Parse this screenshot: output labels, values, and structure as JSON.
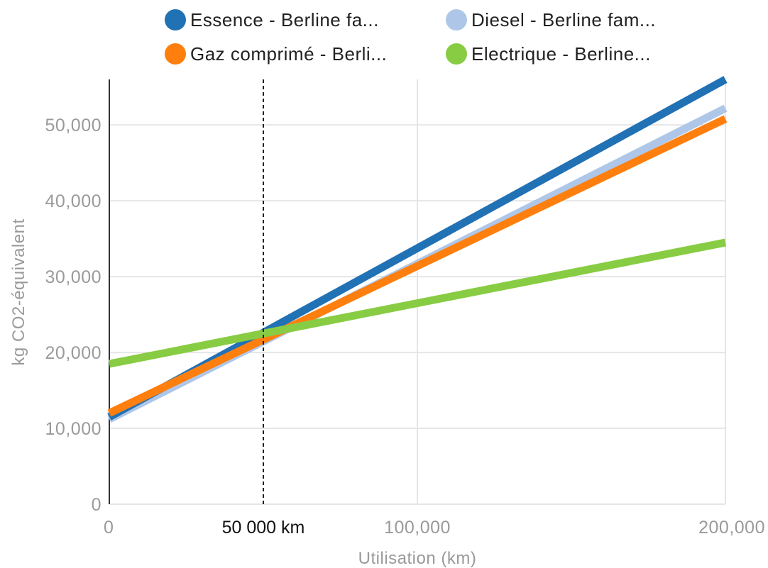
{
  "chart_data": {
    "type": "line",
    "xlabel": "Utilisation (km)",
    "ylabel": "kg CO2-équivalent",
    "xlim": [
      0,
      200000
    ],
    "ylim": [
      0,
      56000
    ],
    "x_ticks": [
      {
        "value": 0,
        "label": "0"
      },
      {
        "value": 100000,
        "label": "100,000"
      },
      {
        "value": 200000,
        "label": "200,000"
      }
    ],
    "y_ticks": [
      {
        "value": 0,
        "label": "0"
      },
      {
        "value": 10000,
        "label": "10,000"
      },
      {
        "value": 20000,
        "label": "20,000"
      },
      {
        "value": 30000,
        "label": "30,000"
      },
      {
        "value": 40000,
        "label": "40,000"
      },
      {
        "value": 50000,
        "label": "50,000"
      }
    ],
    "grid": true,
    "legend_position": "top",
    "series": [
      {
        "name": "Essence - Berline fa...",
        "color": "#2171b5",
        "x": [
          0,
          200000
        ],
        "y": [
          11500,
          56000
        ]
      },
      {
        "name": "Diesel - Berline fam...",
        "color": "#aec7e8",
        "x": [
          0,
          200000
        ],
        "y": [
          11200,
          52200
        ]
      },
      {
        "name": "Gaz comprimé - Berli...",
        "color": "#ff7f0e",
        "x": [
          0,
          200000
        ],
        "y": [
          12000,
          50800
        ]
      },
      {
        "name": "Electrique - Berline...",
        "color": "#88cc44",
        "x": [
          0,
          200000
        ],
        "y": [
          18500,
          34500
        ]
      }
    ],
    "annotations": [
      {
        "type": "vertical-line",
        "x": 50000,
        "label": "50 000 km",
        "style": "dashed"
      }
    ]
  }
}
